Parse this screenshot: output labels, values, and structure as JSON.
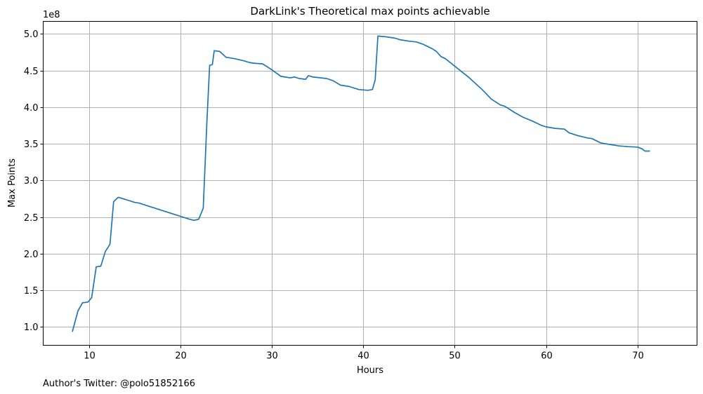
{
  "chart_data": {
    "type": "line",
    "title": "DarkLink's Theoretical max points achievable",
    "xlabel": "Hours",
    "ylabel": "Max Points",
    "y_scale_label": "1e8",
    "footer_text": "Author's Twitter: @polo51852166",
    "xlim": [
      5,
      76.5
    ],
    "ylim": [
      75000000,
      517000000
    ],
    "x_ticks": [
      10,
      20,
      30,
      40,
      50,
      60,
      70
    ],
    "x_tick_labels": [
      "10",
      "20",
      "30",
      "40",
      "50",
      "60",
      "70"
    ],
    "y_ticks": [
      100000000,
      150000000,
      200000000,
      250000000,
      300000000,
      350000000,
      400000000,
      450000000,
      500000000
    ],
    "y_tick_labels": [
      "1.0",
      "1.5",
      "2.0",
      "2.5",
      "3.0",
      "3.5",
      "4.0",
      "4.5",
      "5.0"
    ],
    "grid": true,
    "line_color": "#1f77b4",
    "series": [
      {
        "x": [
          8.2,
          8.8,
          9.3,
          9.9,
          10.3,
          10.8,
          11.3,
          11.8,
          12.3,
          12.7,
          13.2,
          14.0,
          15.0,
          15.5,
          16.5,
          18.0,
          19.5,
          21.0,
          21.5,
          22.0,
          22.5,
          22.9,
          23.2,
          23.5,
          23.7,
          24.3,
          25.0,
          26.0,
          27.0,
          27.5,
          28.0,
          29.0,
          30.0,
          31.0,
          32.0,
          32.5,
          33.0,
          33.7,
          34.0,
          34.5,
          35.0,
          36.0,
          36.7,
          37.5,
          38.5,
          39.5,
          40.5,
          41.0,
          41.3,
          41.6,
          42.5,
          43.5,
          44.0,
          45.0,
          45.8,
          46.5,
          47.5,
          48.0,
          48.5,
          49.0,
          50.0,
          51.5,
          53.0,
          54.0,
          55.0,
          55.5,
          56.5,
          57.5,
          58.5,
          59.5,
          60.0,
          61.0,
          62.0,
          62.5,
          63.5,
          64.5,
          65.0,
          66.0,
          67.0,
          68.0,
          69.0,
          70.0,
          70.5,
          70.8,
          71.3
        ],
        "y": [
          94000000,
          122000000,
          133000000,
          134000000,
          140000000,
          182000000,
          183000000,
          203000000,
          213000000,
          271000000,
          277000000,
          274000000,
          270000000,
          269000000,
          265000000,
          259000000,
          253000000,
          247000000,
          245500000,
          247000000,
          262000000,
          380000000,
          457000000,
          458000000,
          477000000,
          476000000,
          468000000,
          466000000,
          463000000,
          461000000,
          460000000,
          459000000,
          451000000,
          442000000,
          440000000,
          441000000,
          439000000,
          438000000,
          443000000,
          441000000,
          440500000,
          439000000,
          436000000,
          430000000,
          428000000,
          424000000,
          423000000,
          424000000,
          437000000,
          497000000,
          496000000,
          494000000,
          492000000,
          490000000,
          489000000,
          486000000,
          480000000,
          476000000,
          469000000,
          466000000,
          456000000,
          441000000,
          424000000,
          411000000,
          403000000,
          401000000,
          393000000,
          386000000,
          381000000,
          375000000,
          373000000,
          371000000,
          370000000,
          365000000,
          361000000,
          358000000,
          357000000,
          351000000,
          349000000,
          347000000,
          346000000,
          345500000,
          343000000,
          340000000,
          340000000
        ]
      }
    ]
  }
}
